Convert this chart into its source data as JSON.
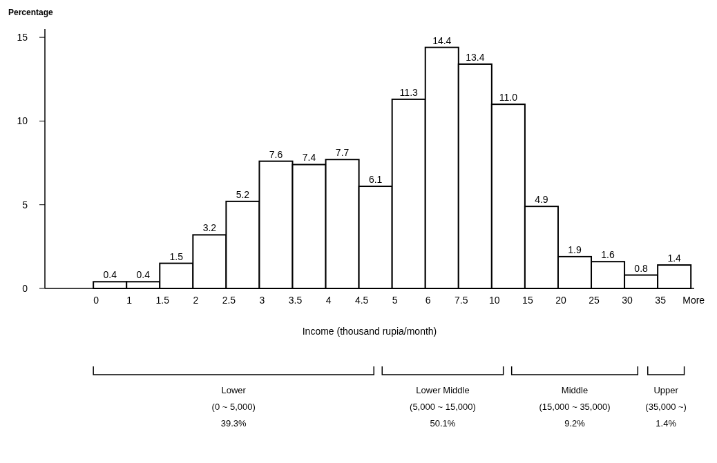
{
  "chart_data": {
    "type": "bar",
    "xlabel": "Income (thousand rupia/month)",
    "ylabel": "Percentage",
    "categories": [
      "0",
      "1",
      "1.5",
      "2",
      "2.5",
      "3",
      "3.5",
      "4",
      "4.5",
      "5",
      "6",
      "7.5",
      "10",
      "15",
      "20",
      "25",
      "30",
      "35"
    ],
    "values": [
      0.4,
      0.4,
      1.5,
      3.2,
      5.2,
      7.6,
      7.4,
      7.7,
      6.1,
      11.3,
      14.4,
      13.4,
      11.0,
      4.9,
      1.9,
      1.6,
      0.8,
      1.4
    ],
    "value_labels": [
      "0.4",
      "0.4",
      "1.5",
      "3.2",
      "5.2",
      "7.6",
      "7.4",
      "7.7",
      "6.1",
      "11.3",
      "14.4",
      "13.4",
      "11.0",
      "4.9",
      "1.9",
      "1.6",
      "0.8",
      "1.4"
    ],
    "color": "#ffffff",
    "ylim": [
      0,
      15.5
    ],
    "yticks": [
      0,
      5,
      10,
      15
    ],
    "annotations": [
      "More",
      "Lower\n(0 ~ 5,000)\n39.3%",
      "Lower Middle\n(5,000 ~ 15,000)\n50.1%",
      "Middle\n(15,000 ~ 35,000)\n9.2%",
      "Upper\n(35,000 ~)\n1.4%"
    ]
  }
}
